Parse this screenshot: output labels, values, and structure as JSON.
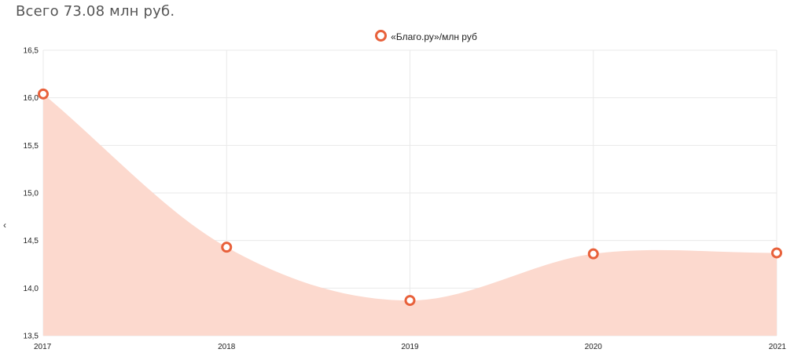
{
  "header": {
    "total_label": "Всего 73.08 млн руб."
  },
  "nav": {
    "prev_arrow": "‹"
  },
  "chart_data": {
    "type": "area",
    "categories": [
      "2017",
      "2018",
      "2019",
      "2020",
      "2021"
    ],
    "series": [
      {
        "name": "«Благо.ру»/млн руб",
        "values": [
          16.04,
          14.43,
          13.87,
          14.36,
          14.37
        ]
      }
    ],
    "ylim": [
      13.5,
      16.5
    ],
    "yticks": [
      "13,5",
      "14,0",
      "14,5",
      "15,0",
      "15,5",
      "16,0",
      "16,5"
    ],
    "xlabel": "",
    "ylabel": "",
    "grid": true,
    "legend_position": "top-center",
    "colors": {
      "line": "#e8613b",
      "fill": "#fcd9ce",
      "grid": "#e9e9e9"
    }
  }
}
